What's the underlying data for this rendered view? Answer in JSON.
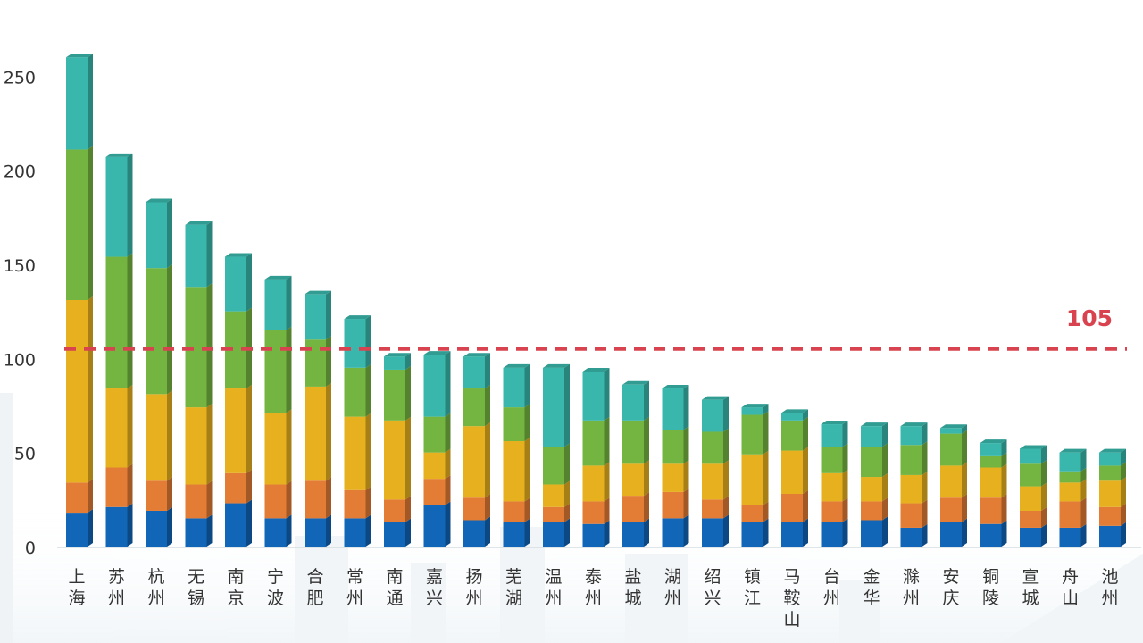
{
  "chart_data": {
    "type": "bar",
    "stacked": true,
    "categories": [
      "上海",
      "苏州",
      "杭州",
      "无锡",
      "南京",
      "宁波",
      "合肥",
      "常州",
      "南通",
      "嘉兴",
      "扬州",
      "芜湖",
      "温州",
      "泰州",
      "盐城",
      "湖州",
      "绍兴",
      "镇江",
      "马鞍山",
      "台州",
      "金华",
      "滁州",
      "安庆",
      "铜陵",
      "宣城",
      "舟山",
      "池州"
    ],
    "series": [
      {
        "values": [
          18,
          21,
          19,
          15,
          23,
          15,
          15,
          15,
          13,
          22,
          14,
          13,
          13,
          12,
          13,
          15,
          15,
          13,
          13,
          13,
          14,
          10,
          13,
          12,
          10,
          10,
          11
        ],
        "color": "#1166b8"
      },
      {
        "values": [
          16,
          21,
          16,
          18,
          16,
          18,
          20,
          15,
          12,
          14,
          12,
          11,
          8,
          12,
          14,
          14,
          10,
          9,
          15,
          11,
          10,
          13,
          13,
          14,
          9,
          14,
          10
        ],
        "color": "#e37c34"
      },
      {
        "values": [
          97,
          42,
          46,
          41,
          45,
          38,
          50,
          39,
          42,
          14,
          38,
          32,
          12,
          19,
          17,
          15,
          19,
          27,
          23,
          15,
          13,
          15,
          17,
          16,
          13,
          10,
          14
        ],
        "color": "#e6b01e"
      },
      {
        "values": [
          80,
          70,
          67,
          64,
          41,
          44,
          25,
          26,
          27,
          19,
          20,
          18,
          20,
          24,
          23,
          18,
          17,
          21,
          16,
          14,
          16,
          16,
          17,
          6,
          12,
          6,
          8
        ],
        "color": "#74b440"
      },
      {
        "values": [
          49,
          53,
          35,
          33,
          29,
          27,
          24,
          26,
          7,
          33,
          17,
          21,
          42,
          26,
          19,
          22,
          17,
          4,
          4,
          12,
          11,
          10,
          3,
          7,
          8,
          10,
          7
        ],
        "color": "#39b7ac"
      }
    ],
    "yticks": [
      0,
      50,
      100,
      150,
      200,
      250
    ],
    "ylim": [
      0,
      262
    ],
    "reference_line": {
      "value": 105,
      "label": "105",
      "color": "#d9434f",
      "style": "dashed"
    },
    "grid": false,
    "legend": "none"
  }
}
